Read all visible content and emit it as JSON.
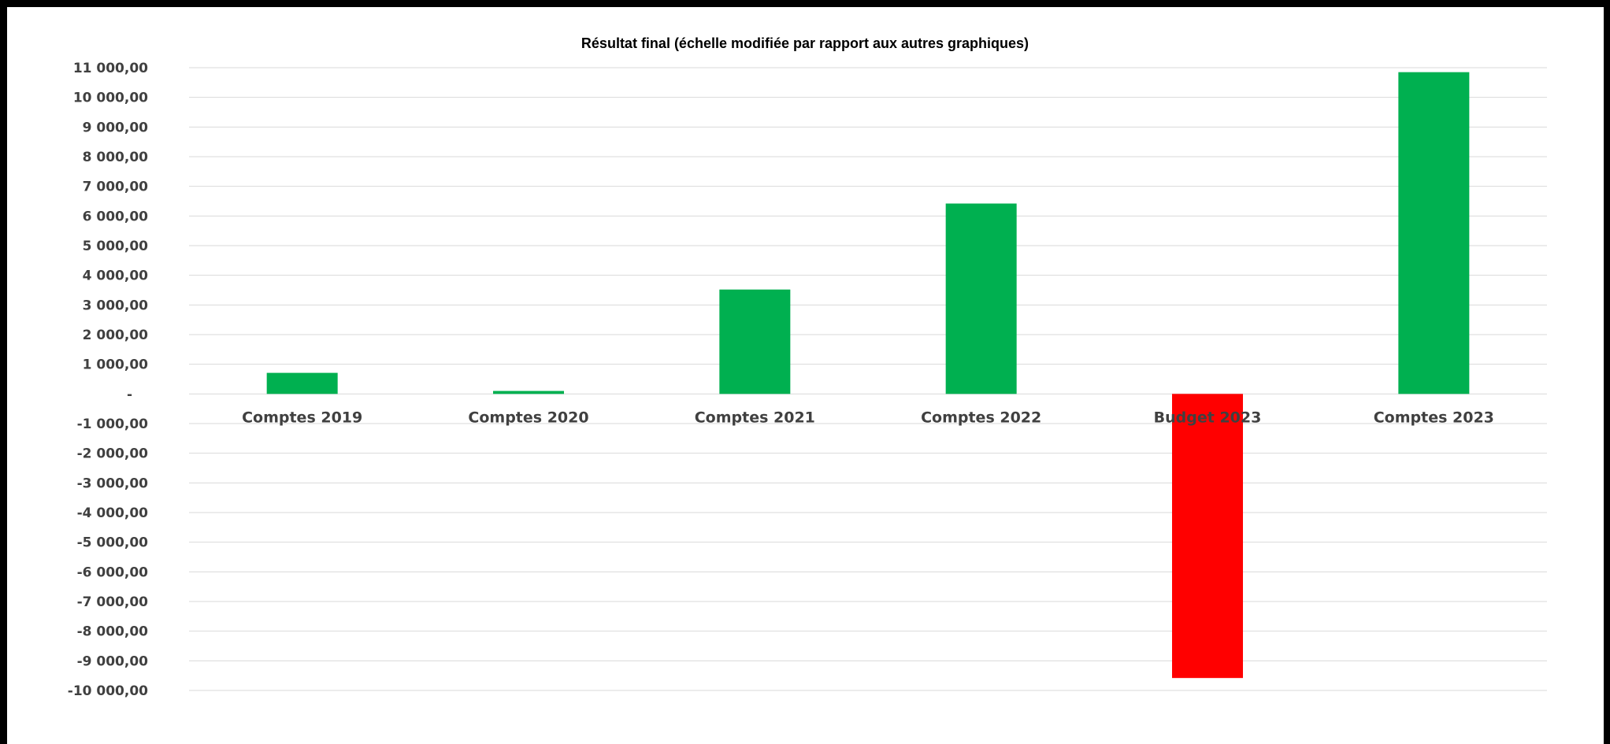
{
  "chart_data": {
    "type": "bar",
    "title": "Résultat final (échelle modifiée par rapport aux autres graphiques)",
    "xlabel": "",
    "ylabel": "",
    "categories": [
      "Comptes 2019",
      "Comptes 2020",
      "Comptes 2021",
      "Comptes 2022",
      "Budget 2023",
      "Comptes 2023"
    ],
    "values": [
      710,
      100,
      3520,
      6420,
      -9580,
      10850
    ],
    "ylim": [
      -10000,
      11000
    ],
    "y_ticks": [
      "11 000,00",
      "10 000,00",
      "9 000,00",
      "8 000,00",
      "7 000,00",
      "6 000,00",
      "5 000,00",
      "4 000,00",
      "3 000,00",
      "2 000,00",
      "1 000,00",
      "-",
      "-1 000,00",
      "-2 000,00",
      "-3 000,00",
      "-4 000,00",
      "-5 000,00",
      "-6 000,00",
      "-7 000,00",
      "-8 000,00",
      "-9 000,00",
      "-10 000,00"
    ],
    "grid": true,
    "legend": "none",
    "colors": {
      "positive": "#00b050",
      "negative": "#ff0000",
      "gridline": "#d9d9d9",
      "tick_text": "#404040",
      "border": "#000000"
    }
  }
}
